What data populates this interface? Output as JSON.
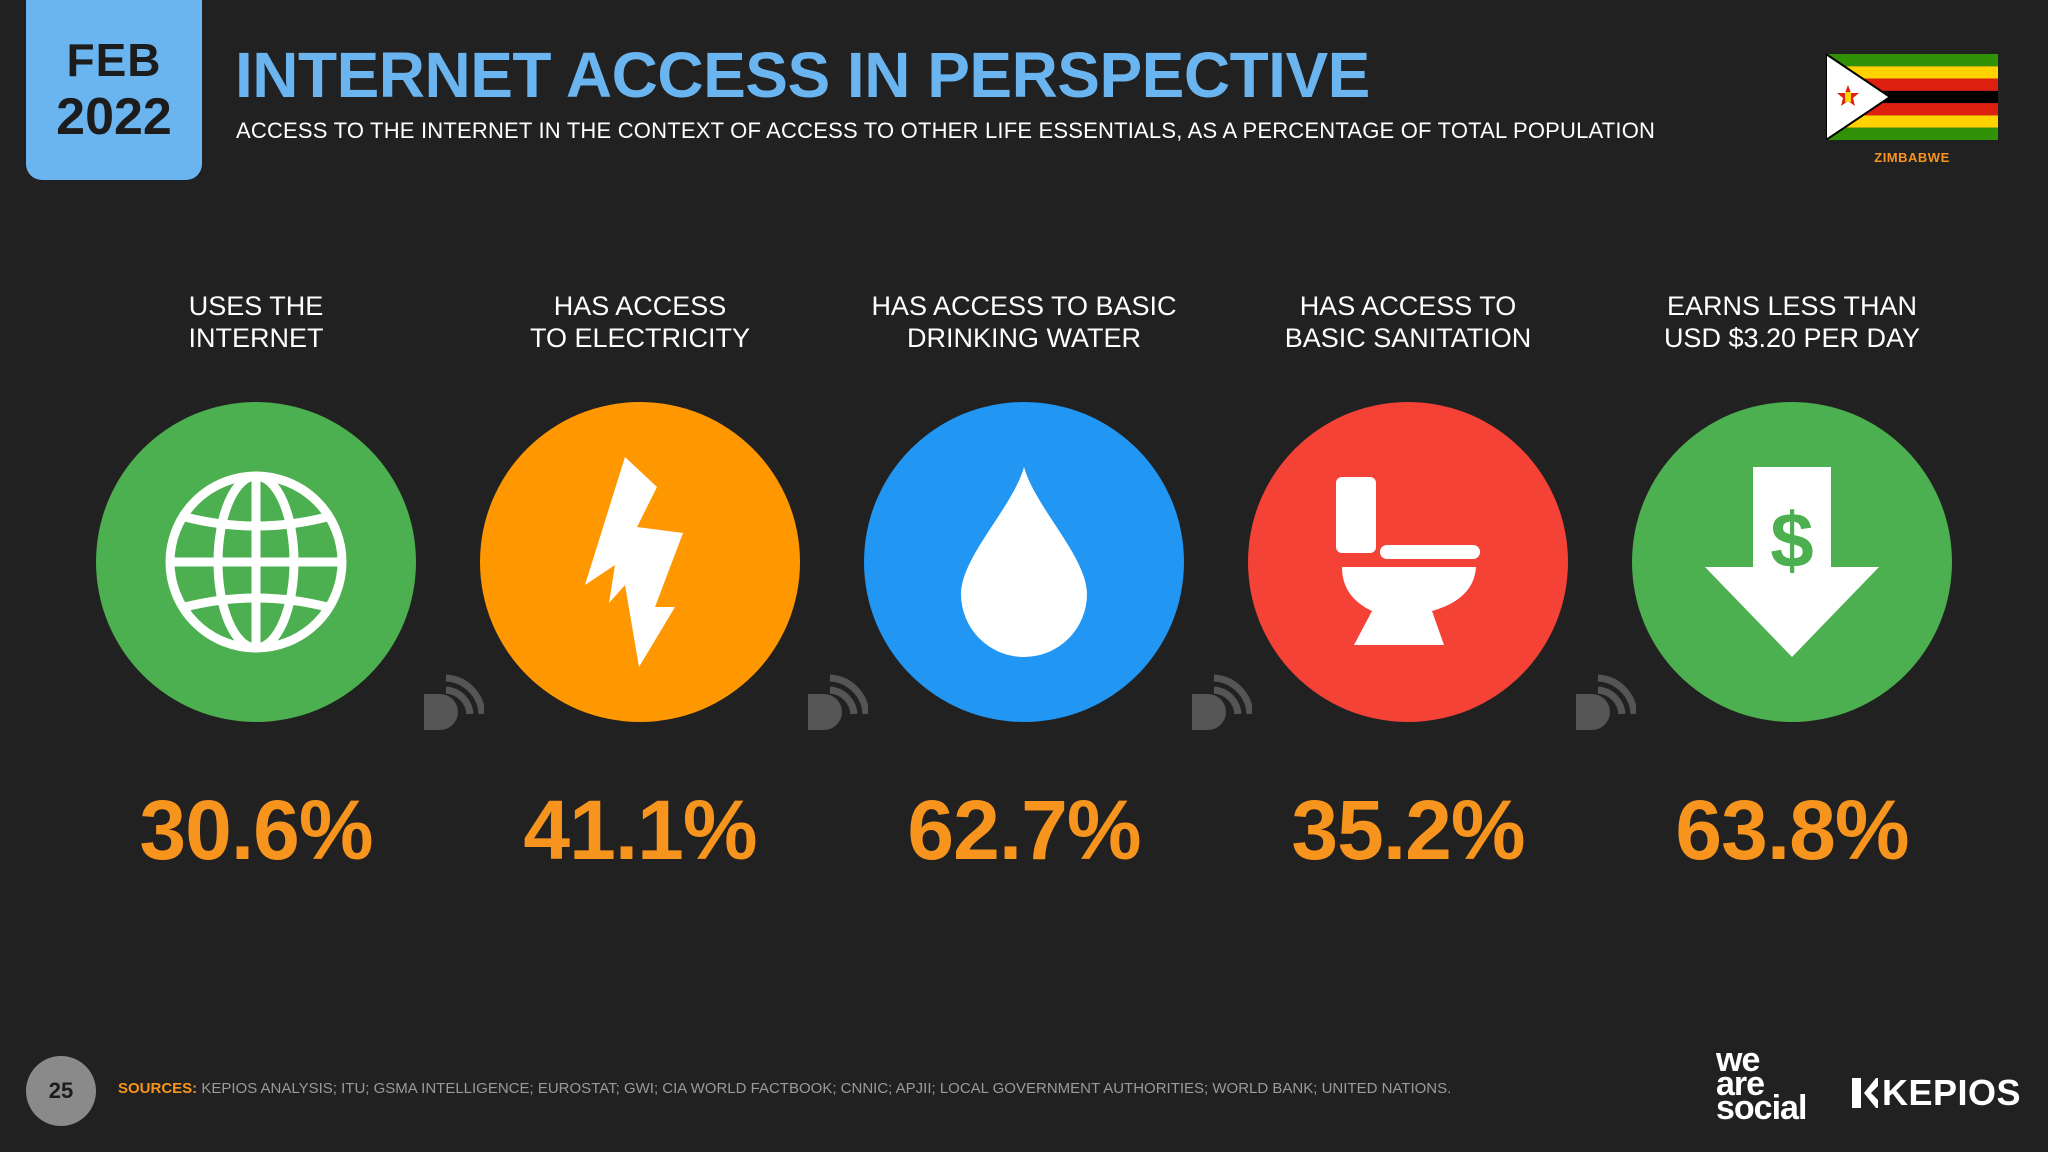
{
  "header": {
    "month": "FEB",
    "year": "2022",
    "title": "INTERNET ACCESS IN PERSPECTIVE",
    "subtitle": "ACCESS TO THE INTERNET IN THE CONTEXT OF ACCESS TO OTHER LIFE ESSENTIALS, AS A PERCENTAGE OF TOTAL POPULATION",
    "country": "ZIMBABWE"
  },
  "stats": [
    {
      "label": "USES THE\nINTERNET",
      "value": "30.6%",
      "icon": "globe-icon",
      "color": "#4caf50"
    },
    {
      "label": "HAS ACCESS\nTO ELECTRICITY",
      "value": "41.1%",
      "icon": "lightning-bolt-icon",
      "color": "#ff9800"
    },
    {
      "label": "HAS ACCESS TO BASIC\nDRINKING WATER",
      "value": "62.7%",
      "icon": "water-drop-icon",
      "color": "#2196f3"
    },
    {
      "label": "HAS ACCESS TO\nBASIC SANITATION",
      "value": "35.2%",
      "icon": "toilet-icon",
      "color": "#f44336"
    },
    {
      "label": "EARNS LESS THAN\nUSD $3.20 PER DAY",
      "value": "63.8%",
      "icon": "dollar-down-arrow-icon",
      "color": "#4caf50"
    }
  ],
  "footer": {
    "page": "25",
    "sources_label": "SOURCES:",
    "sources_text": "KEPIOS ANALYSIS; ITU; GSMA INTELLIGENCE; EUROSTAT; GWI; CIA WORLD FACTBOOK; CNNIC; APJII; LOCAL GOVERNMENT AUTHORITIES; WORLD BANK; UNITED NATIONS.",
    "brand1_line1": "we",
    "brand1_line2": "are",
    "brand1_line3": "social",
    "brand2": "KEPIOS"
  },
  "colors": {
    "background": "#212121",
    "accent_blue": "#6ab4f0",
    "accent_orange": "#f7941d"
  }
}
